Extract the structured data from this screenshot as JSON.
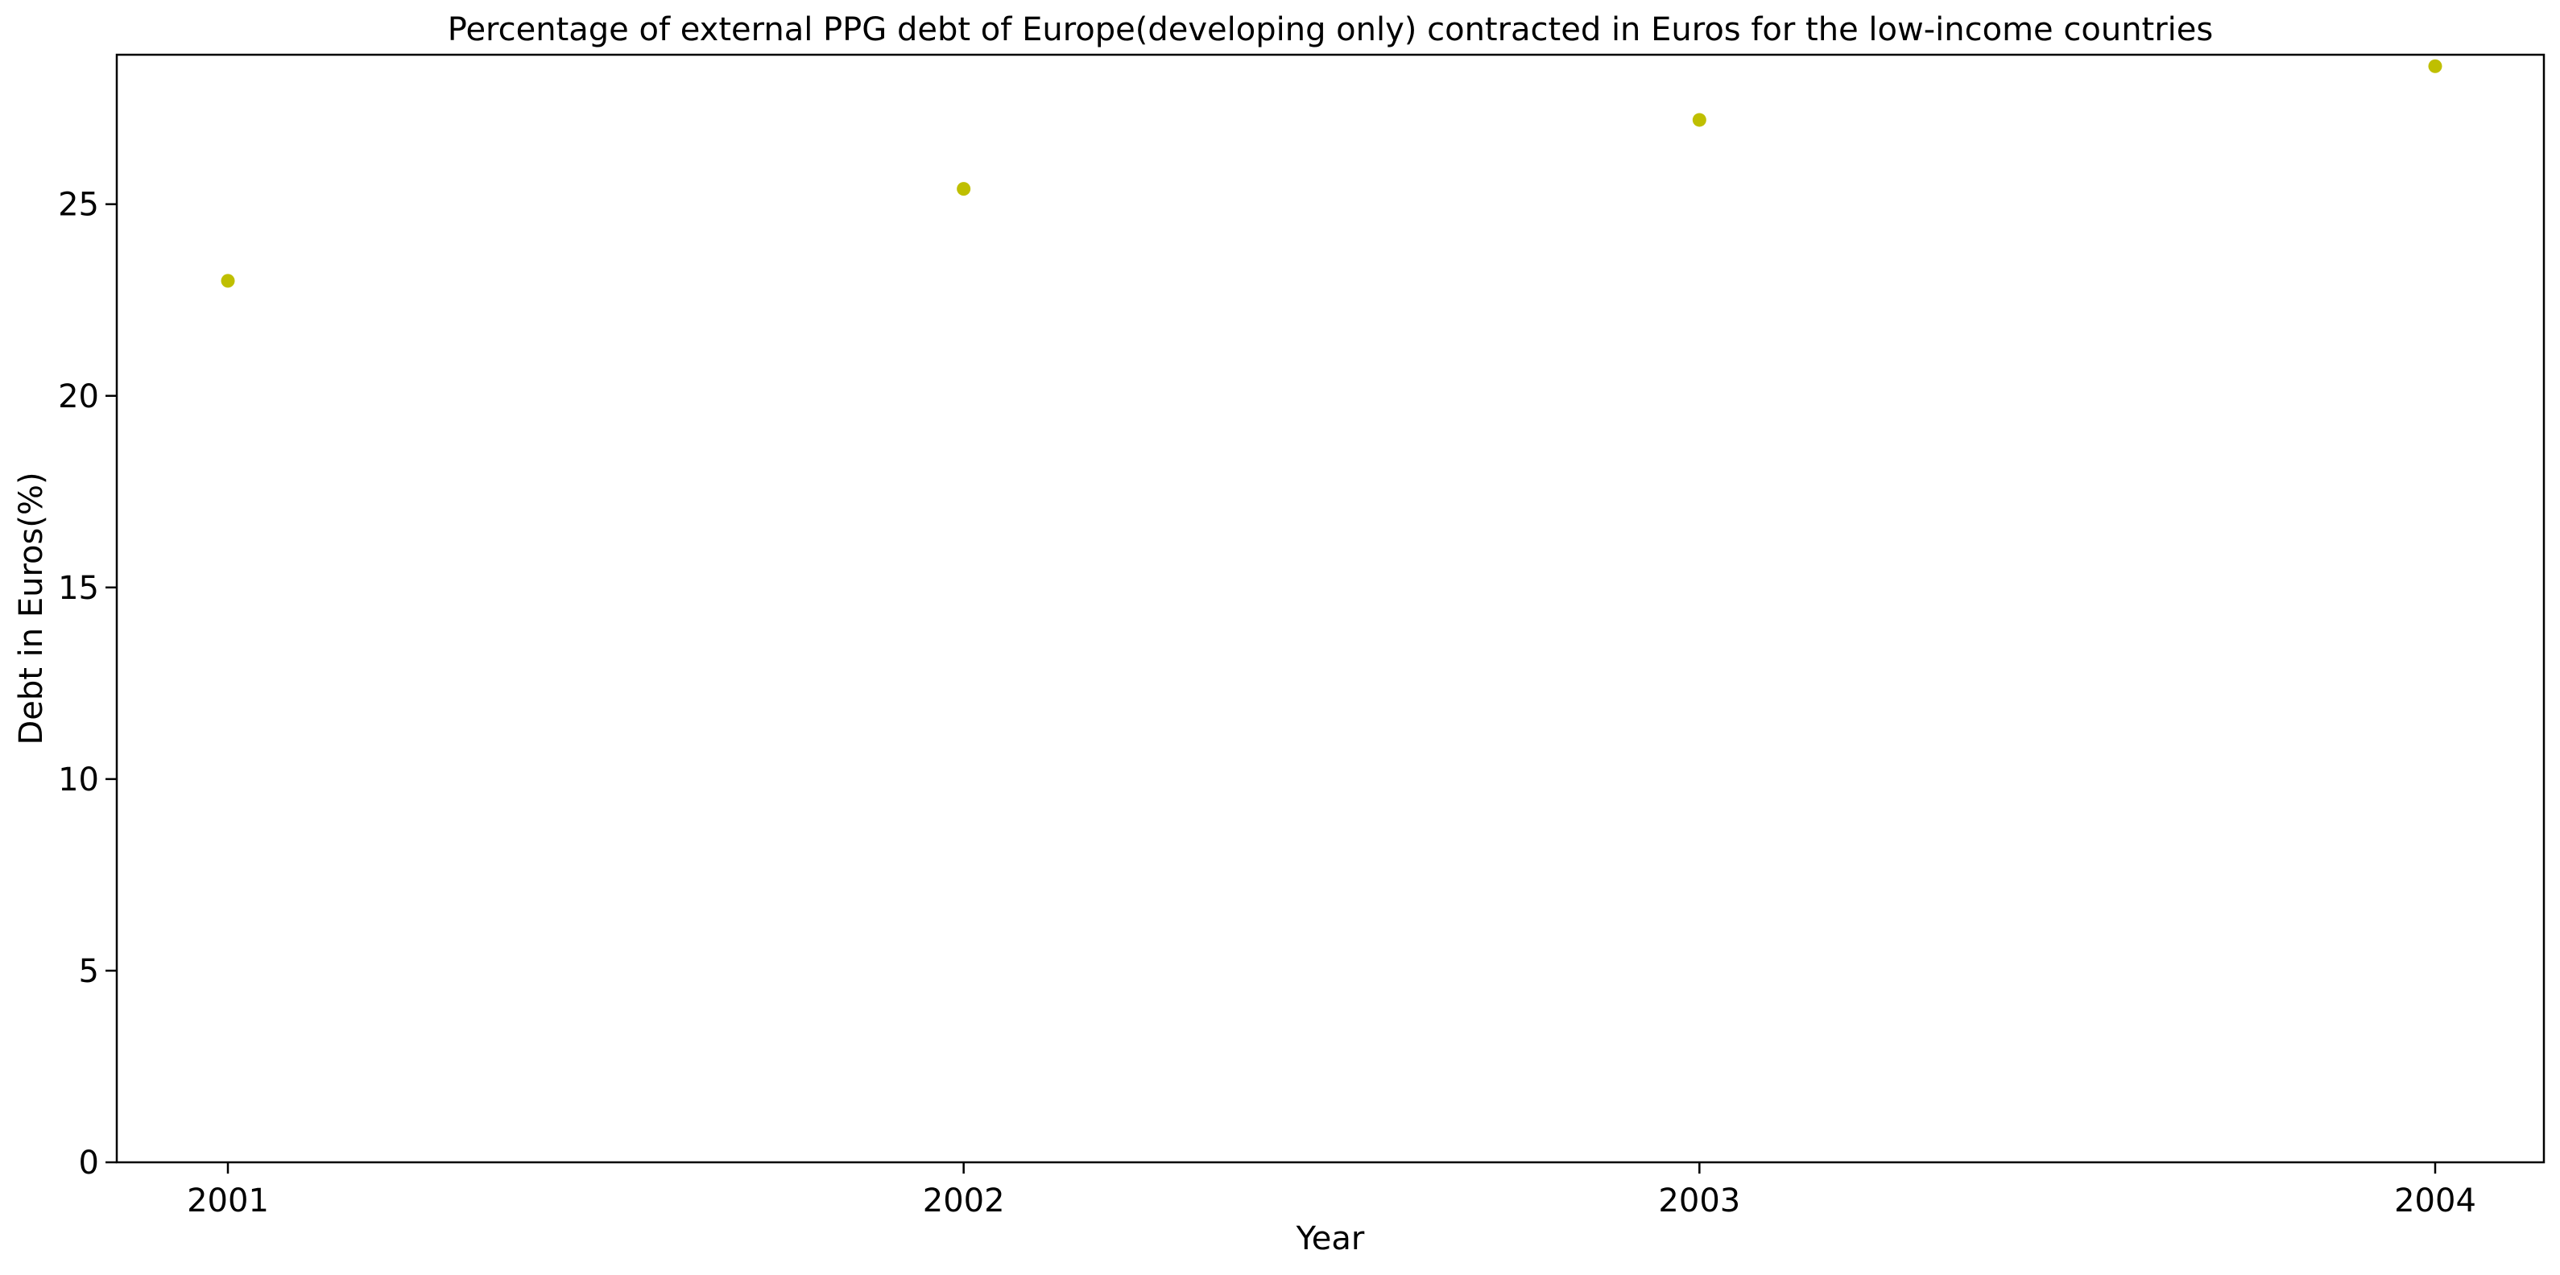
{
  "chart_data": {
    "type": "scatter",
    "title": "Percentage of external PPG debt of Europe(developing only) contracted in Euros for the low-income countries",
    "xlabel": "Year",
    "ylabel": "Debt in Euros(%)",
    "x": [
      "2001",
      "2002",
      "2003",
      "2004"
    ],
    "series": [
      {
        "values": [
          23.0,
          25.4,
          27.2,
          28.6
        ],
        "color": "#bfbf00"
      }
    ],
    "yticks": [
      0,
      5,
      10,
      15,
      20,
      25
    ],
    "ylim": [
      0,
      28.9
    ],
    "grid": false,
    "legend": "none"
  }
}
